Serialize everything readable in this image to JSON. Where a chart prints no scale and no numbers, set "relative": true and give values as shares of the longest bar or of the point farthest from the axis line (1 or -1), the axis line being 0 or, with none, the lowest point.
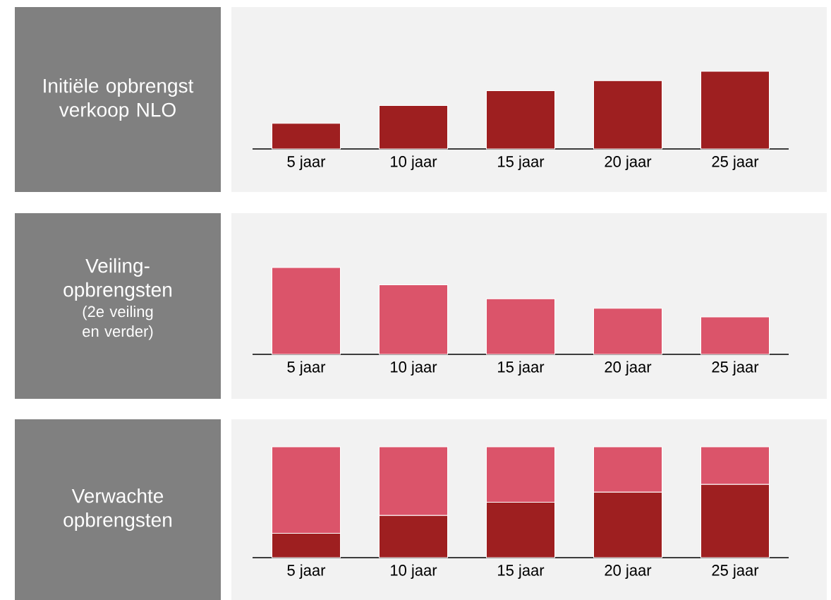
{
  "chart_data": [
    {
      "type": "bar",
      "title": "Initiële opbrengst verkoop NLO",
      "categories": [
        "5 jaar",
        "10 jaar",
        "15 jaar",
        "20 jaar",
        "25 jaar"
      ],
      "relative": true,
      "series": [
        {
          "color": "#9e1f20",
          "values": [
            0.33,
            0.56,
            0.75,
            0.88,
            1
          ]
        }
      ]
    },
    {
      "type": "bar",
      "title": "Veiling-opbrengsten",
      "annotations": [
        "(2e veiling en verder)"
      ],
      "categories": [
        "5 jaar",
        "10 jaar",
        "15 jaar",
        "20 jaar",
        "25 jaar"
      ],
      "relative": true,
      "series": [
        {
          "color": "#db546a",
          "values": [
            1,
            0.8,
            0.64,
            0.53,
            0.43
          ]
        }
      ]
    },
    {
      "type": "bar",
      "title": "Verwachte opbrengsten",
      "categories": [
        "5 jaar",
        "10 jaar",
        "15 jaar",
        "20 jaar",
        "25 jaar"
      ],
      "relative": true,
      "stacked": true,
      "series": [
        {
          "color": "#9e1f20",
          "values": [
            0.22,
            0.38,
            0.5,
            0.59,
            0.66
          ]
        },
        {
          "color": "#db546a",
          "values": [
            0.78,
            0.62,
            0.5,
            0.41,
            0.34
          ]
        }
      ]
    }
  ]
}
